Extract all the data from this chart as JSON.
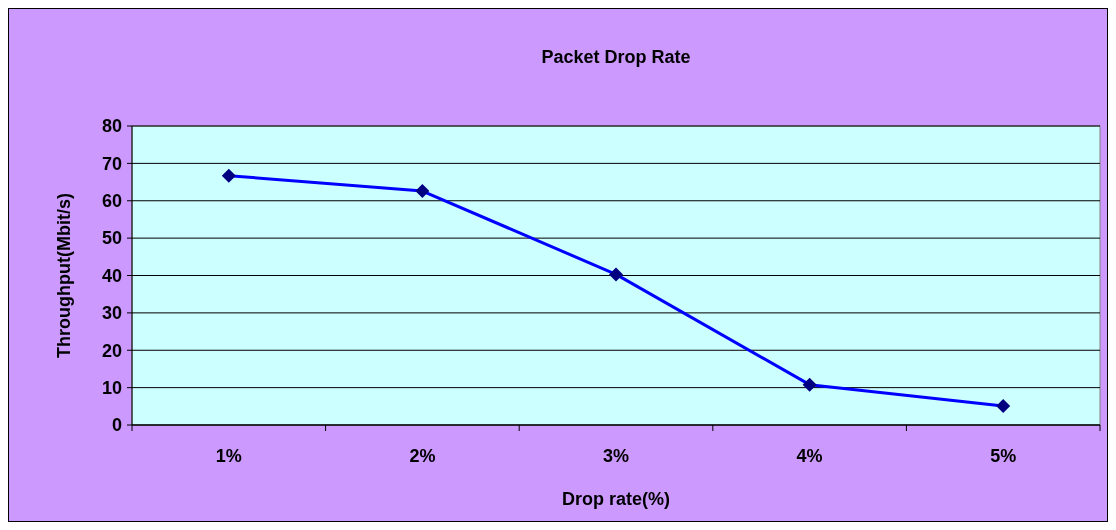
{
  "chart_data": {
    "type": "line",
    "title": "Packet Drop Rate",
    "xlabel": "Drop rate(%)",
    "ylabel": "Throughput(Mbit/s)",
    "categories": [
      "1%",
      "2%",
      "3%",
      "4%",
      "5%"
    ],
    "series": [
      {
        "color": "#0000ff",
        "values": [
          66.7,
          62.6,
          40.3,
          10.8,
          5.1
        ]
      }
    ],
    "ylim": [
      0,
      80
    ],
    "yticks": [
      0,
      10,
      20,
      30,
      40,
      50,
      60,
      70,
      80
    ],
    "grid": "y",
    "marker": "diamond",
    "line_style": "solid"
  }
}
